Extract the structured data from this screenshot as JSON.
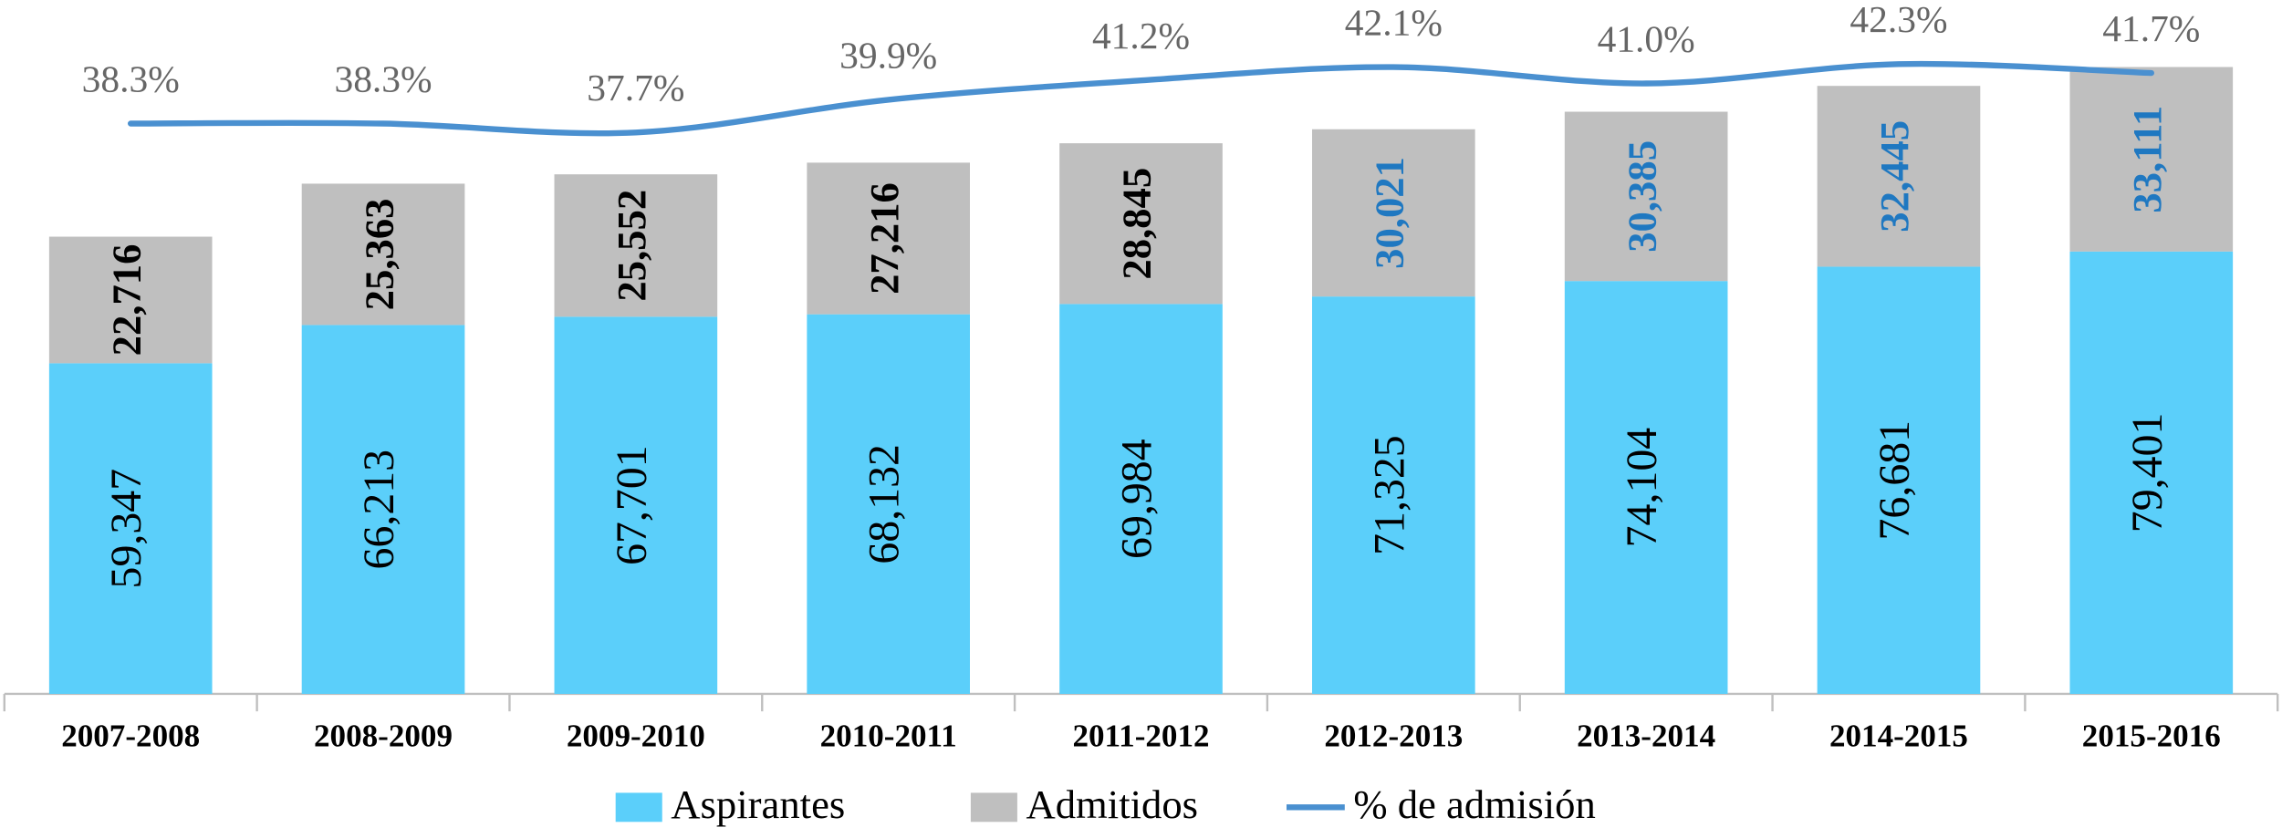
{
  "chart_data": {
    "type": "bar",
    "categories": [
      "2007-2008",
      "2008-2009",
      "2009-2010",
      "2010-2011",
      "2011-2012",
      "2012-2013",
      "2013-2014",
      "2014-2015",
      "2015-2016"
    ],
    "stacked": true,
    "series": [
      {
        "name": "Aspirantes",
        "color": "#5bcffa",
        "label_color": "#000000",
        "values": [
          59347,
          66213,
          67701,
          68132,
          69984,
          71325,
          74104,
          76681,
          79401
        ],
        "value_labels": [
          "59,347",
          "66,213",
          "67,701",
          "68,132",
          "69,984",
          "71,325",
          "74,104",
          "76,681",
          "79,401"
        ]
      },
      {
        "name": "Admitidos",
        "color": "#bfbfbf",
        "label_colors": [
          "#000000",
          "#000000",
          "#000000",
          "#000000",
          "#000000",
          "#1f78c1",
          "#1f78c1",
          "#1f78c1",
          "#1f78c1"
        ],
        "values": [
          22716,
          25363,
          25552,
          27216,
          28845,
          30021,
          30385,
          32445,
          33111
        ],
        "value_labels": [
          "22,716",
          "25,363",
          "25,552",
          "27,216",
          "28,845",
          "30,021",
          "30,385",
          "32,445",
          "33,111"
        ]
      },
      {
        "name": "% de admisión",
        "type": "line",
        "axis": "y2",
        "color": "#4a90d0",
        "values": [
          38.3,
          38.3,
          37.7,
          39.9,
          41.2,
          42.1,
          41.0,
          42.3,
          41.7
        ],
        "value_labels": [
          "38.3%",
          "38.3%",
          "37.7%",
          "39.9%",
          "41.2%",
          "42.1%",
          "41.0%",
          "42.3%",
          "41.7%"
        ]
      }
    ],
    "legend": "bottom"
  }
}
